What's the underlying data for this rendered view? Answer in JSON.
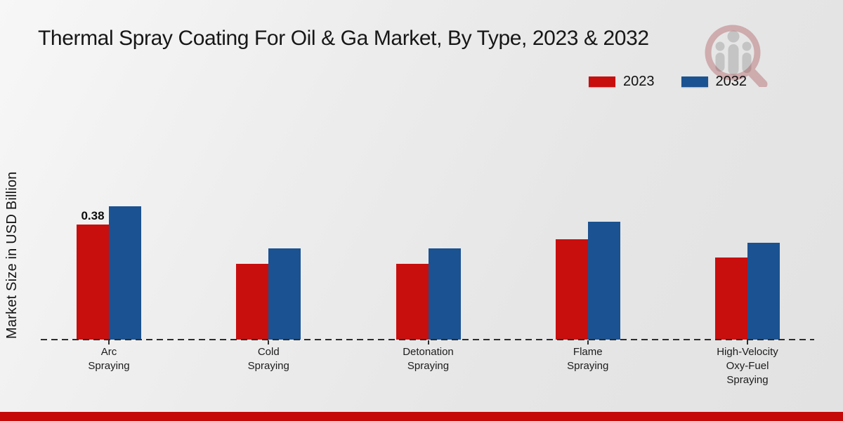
{
  "page": {
    "title": "Thermal Spray Coating For Oil & Ga Market, By Type, 2023 & 2032",
    "ylabel": "Market Size in USD Billion",
    "footer_color": "#c50909"
  },
  "legend": {
    "position": "top-right",
    "items": [
      {
        "label": "2023",
        "color": "#c90e0e"
      },
      {
        "label": "2032",
        "color": "#1b5291"
      }
    ]
  },
  "watermark": {
    "icon": "magnifier-bars-logo",
    "ring_color": "#9b2730",
    "figure_color": "#8f8f8f"
  },
  "chart_data": {
    "type": "bar",
    "title": "Thermal Spray Coating For Oil & Ga Market, By Type, 2023 & 2032",
    "xlabel": "",
    "ylabel": "Market Size in USD Billion",
    "categories": [
      "Arc Spraying",
      "Cold Spraying",
      "Detonation Spraying",
      "Flame Spraying",
      "High-Velocity Oxy-Fuel Spraying"
    ],
    "category_label_lines": [
      [
        "Arc",
        "Spraying"
      ],
      [
        "Cold",
        "Spraying"
      ],
      [
        "Detonation",
        "Spraying"
      ],
      [
        "Flame",
        "Spraying"
      ],
      [
        "High-Velocity",
        "Oxy-Fuel",
        "Spraying"
      ]
    ],
    "series": [
      {
        "name": "2023",
        "color": "#c90e0e",
        "values": [
          0.38,
          0.25,
          0.25,
          0.33,
          0.27
        ]
      },
      {
        "name": "2032",
        "color": "#1b5291",
        "values": [
          0.44,
          0.3,
          0.3,
          0.39,
          0.32
        ]
      }
    ],
    "ylim": [
      0,
      0.5
    ],
    "grid": false,
    "axis_style": "dashed-baseline-only",
    "legend_position": "top-right",
    "annotations": [
      {
        "series": "2023",
        "category": "Arc Spraying",
        "text": "0.38"
      }
    ]
  }
}
